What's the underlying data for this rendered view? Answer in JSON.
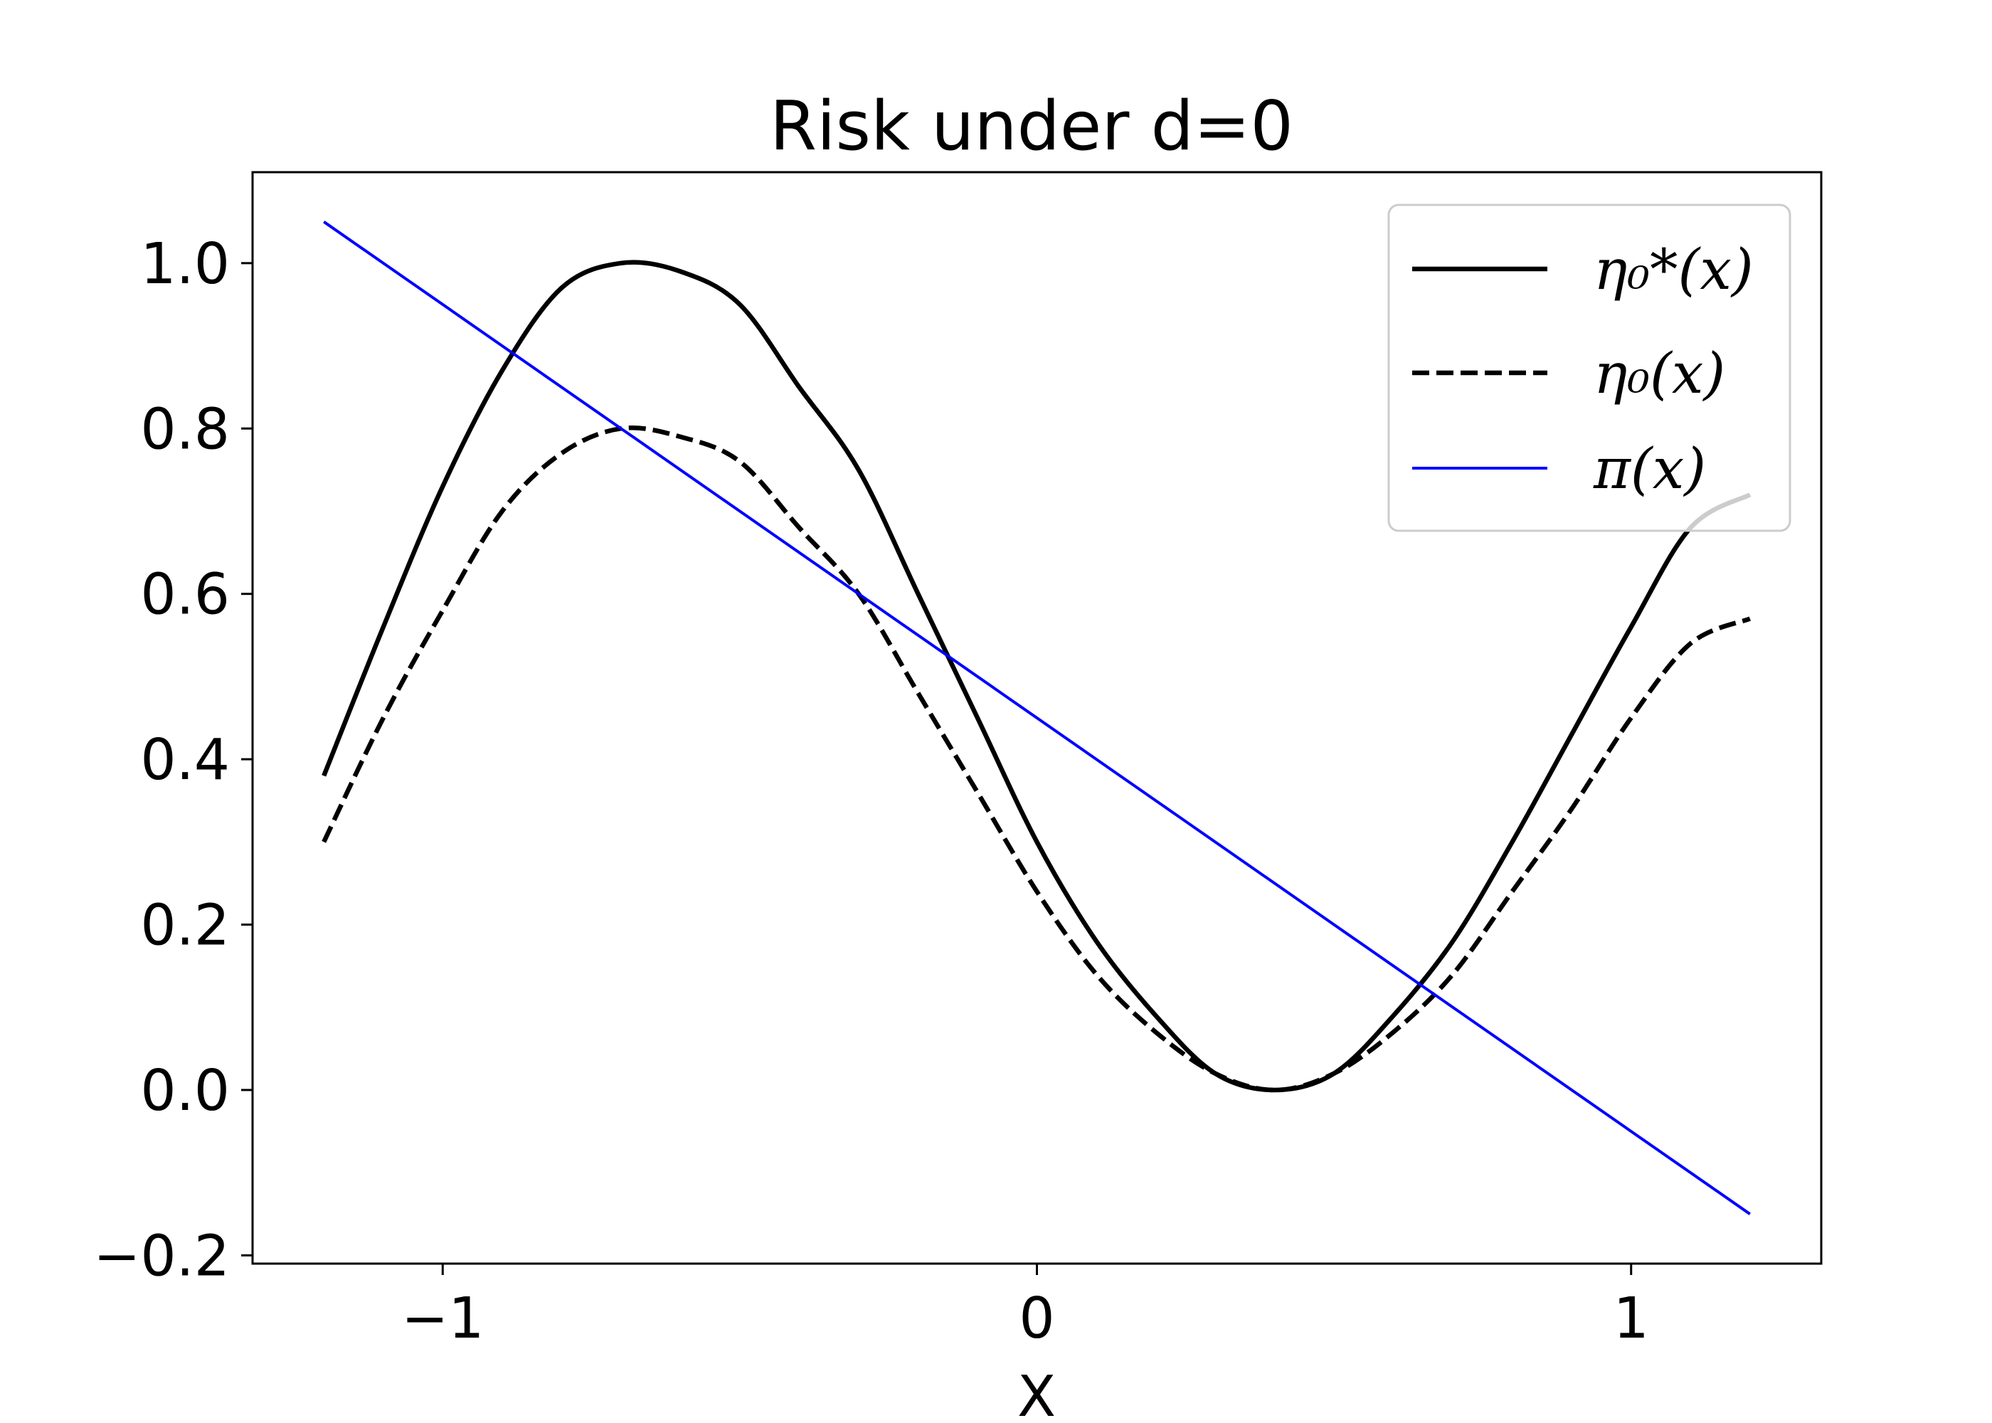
{
  "chart_data": {
    "type": "line",
    "title": "Risk under d=0",
    "xlabel": "X",
    "ylabel": "",
    "xlim": [
      -1.32,
      1.32
    ],
    "ylim": [
      -0.21,
      1.11
    ],
    "x_ticks": [
      -1,
      0,
      1
    ],
    "x_tick_labels": [
      "−1",
      "0",
      "1"
    ],
    "y_ticks": [
      -0.2,
      0.0,
      0.2,
      0.4,
      0.6,
      0.8,
      1.0
    ],
    "y_tick_labels": [
      "−0.2",
      "0.0",
      "0.2",
      "0.4",
      "0.6",
      "0.8",
      "1.0"
    ],
    "grid": false,
    "legend_position": "top-right",
    "series": [
      {
        "name": "η₀*(x)",
        "color": "#000000",
        "style": "solid",
        "x": [
          -1.2,
          -1.1,
          -1.0,
          -0.9,
          -0.8,
          -0.7,
          -0.6,
          -0.5,
          -0.4,
          -0.3,
          -0.2,
          -0.1,
          0.0,
          0.1,
          0.2,
          0.3,
          0.4,
          0.5,
          0.6,
          0.7,
          0.8,
          0.9,
          1.0,
          1.1,
          1.2
        ],
        "y": [
          0.38,
          0.56,
          0.73,
          0.87,
          0.97,
          1.0,
          0.99,
          0.95,
          0.85,
          0.75,
          0.6,
          0.45,
          0.3,
          0.18,
          0.09,
          0.02,
          0.0,
          0.02,
          0.09,
          0.18,
          0.3,
          0.43,
          0.56,
          0.68,
          0.72
        ]
      },
      {
        "name": "η₀(x)",
        "color": "#000000",
        "style": "dashed",
        "x": [
          -1.2,
          -1.1,
          -1.0,
          -0.9,
          -0.8,
          -0.7,
          -0.6,
          -0.5,
          -0.4,
          -0.3,
          -0.2,
          -0.1,
          0.0,
          0.1,
          0.2,
          0.3,
          0.4,
          0.5,
          0.6,
          0.7,
          0.8,
          0.9,
          1.0,
          1.1,
          1.2
        ],
        "y": [
          0.3,
          0.45,
          0.58,
          0.7,
          0.77,
          0.8,
          0.79,
          0.76,
          0.68,
          0.6,
          0.48,
          0.36,
          0.24,
          0.14,
          0.07,
          0.02,
          0.0,
          0.02,
          0.07,
          0.14,
          0.24,
          0.34,
          0.45,
          0.54,
          0.57
        ]
      },
      {
        "name": "π(x)",
        "color": "#0000ff",
        "style": "solid",
        "x": [
          -1.2,
          1.2
        ],
        "y": [
          1.05,
          -0.15
        ]
      }
    ]
  }
}
